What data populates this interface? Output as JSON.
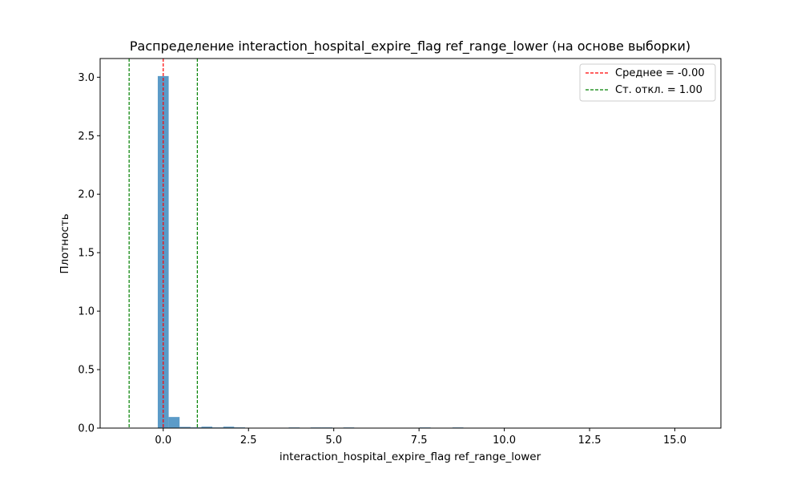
{
  "chart_data": {
    "type": "bar",
    "title": "Распределение interaction_hospital_expire_flag ref_range_lower (на основе выборки)",
    "xlabel": "interaction_hospital_expire_flag ref_range_lower",
    "ylabel": "Плотность",
    "xlim": [
      -1.85,
      16.35
    ],
    "ylim": [
      0,
      3.16
    ],
    "grid": false,
    "legend_position": "top-right",
    "x_ticks": [
      {
        "value": 0,
        "label": "0.0"
      },
      {
        "value": 2.5,
        "label": "2.5"
      },
      {
        "value": 5,
        "label": "5.0"
      },
      {
        "value": 7.5,
        "label": "7.5"
      },
      {
        "value": 10,
        "label": "10.0"
      },
      {
        "value": 12.5,
        "label": "12.5"
      },
      {
        "value": 15,
        "label": "15.0"
      }
    ],
    "y_ticks": [
      {
        "value": 0,
        "label": "0.0"
      },
      {
        "value": 0.5,
        "label": "0.5"
      },
      {
        "value": 1,
        "label": "1.0"
      },
      {
        "value": 1.5,
        "label": "1.5"
      },
      {
        "value": 2,
        "label": "2.0"
      },
      {
        "value": 2.5,
        "label": "2.5"
      },
      {
        "value": 3,
        "label": "3.0"
      }
    ],
    "bar_color": "#5b9bc8",
    "bins": [
      {
        "x0": -0.16,
        "x1": 0.16,
        "density": 3.01
      },
      {
        "x0": 0.16,
        "x1": 0.48,
        "density": 0.095
      },
      {
        "x0": 0.48,
        "x1": 0.8,
        "density": 0.01
      },
      {
        "x0": 0.8,
        "x1": 1.12,
        "density": 0.006
      },
      {
        "x0": 1.12,
        "x1": 1.44,
        "density": 0.012
      },
      {
        "x0": 1.44,
        "x1": 1.76,
        "density": 0.004
      },
      {
        "x0": 1.76,
        "x1": 2.08,
        "density": 0.012
      },
      {
        "x0": 2.08,
        "x1": 2.4,
        "density": 0.006
      },
      {
        "x0": 3.68,
        "x1": 4.0,
        "density": 0.004
      },
      {
        "x0": 4.32,
        "x1": 4.64,
        "density": 0.004
      },
      {
        "x0": 4.64,
        "x1": 4.96,
        "density": 0.004
      },
      {
        "x0": 5.28,
        "x1": 5.6,
        "density": 0.004
      },
      {
        "x0": 7.52,
        "x1": 7.84,
        "density": 0.004
      },
      {
        "x0": 8.48,
        "x1": 8.8,
        "density": 0.004
      }
    ],
    "vlines": [
      {
        "x": 0.0,
        "color": "#ff0000",
        "style": "dashed",
        "legend": "Среднее = -0.00"
      },
      {
        "x": -1.0,
        "color": "#008000",
        "style": "dashed",
        "legend": "Ст. откл. = 1.00"
      },
      {
        "x": 1.0,
        "color": "#008000",
        "style": "dashed",
        "legend": null
      }
    ],
    "legend": [
      {
        "label": "Среднее = -0.00",
        "color": "#ff0000"
      },
      {
        "label": "Ст. откл. = 1.00",
        "color": "#008000"
      }
    ]
  }
}
